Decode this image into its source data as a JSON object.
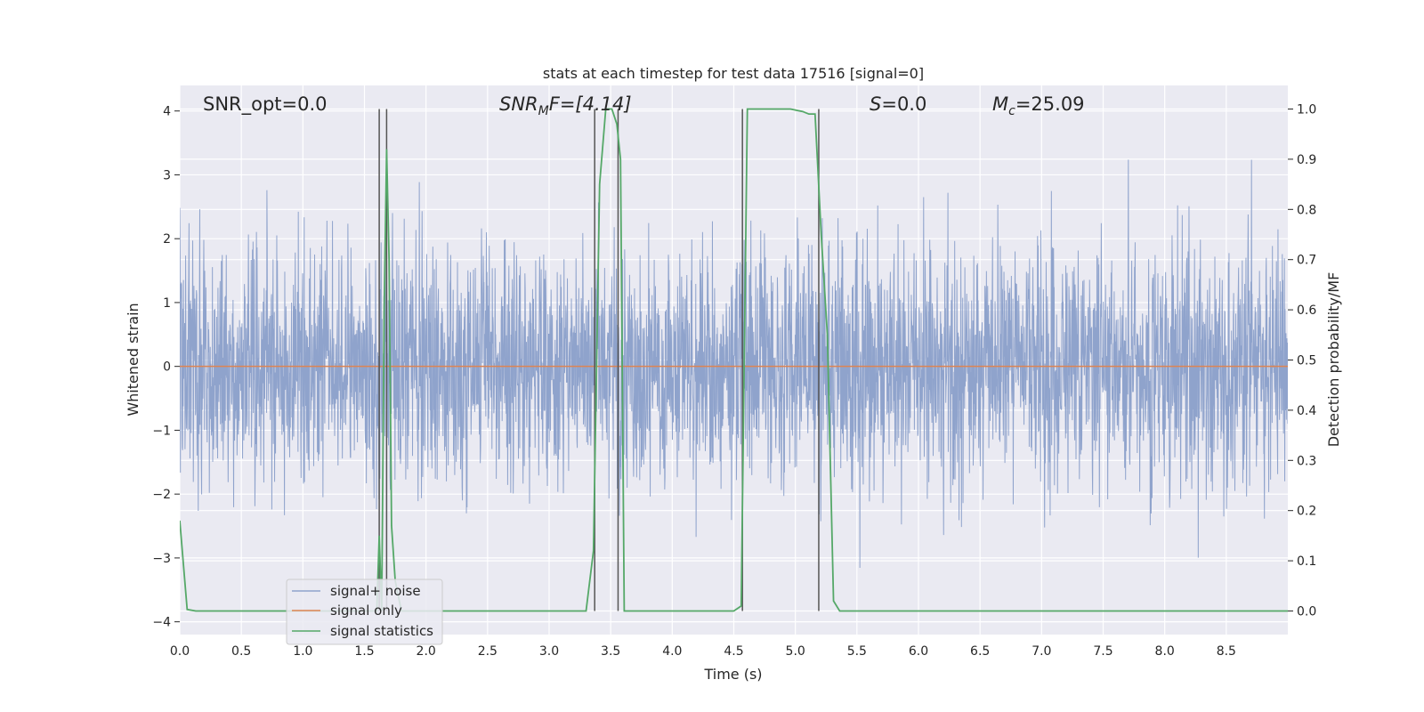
{
  "chart_data": {
    "type": "line",
    "title": "stats at each timestep for test data 17516 [signal=0]",
    "xlabel": "Time (s)",
    "ylabel_left": "Whitened strain",
    "ylabel_right": "Detection probability/MF",
    "xlim": [
      0.0,
      9.0
    ],
    "ylim_left": [
      -4.2,
      4.4
    ],
    "ylim_right": [
      -0.047,
      1.047
    ],
    "x_ticks": [
      "0.0",
      "0.5",
      "1.0",
      "1.5",
      "2.0",
      "2.5",
      "3.0",
      "3.5",
      "4.0",
      "4.5",
      "5.0",
      "5.5",
      "6.0",
      "6.5",
      "7.0",
      "7.5",
      "8.0",
      "8.5"
    ],
    "y_left_ticks": [
      "4",
      "3",
      "2",
      "1",
      "0",
      "−1",
      "−2",
      "−3",
      "−4"
    ],
    "y_right_ticks": [
      "1.0",
      "0.9",
      "0.8",
      "0.7",
      "0.6",
      "0.5",
      "0.4",
      "0.3",
      "0.2",
      "0.1",
      "0.0"
    ],
    "grid": true,
    "legend_position": "lower-left",
    "annotations": {
      "snr_opt": "SNR_opt=0.0",
      "snr_mf_main": "SNR",
      "snr_mf_sub": "M",
      "snr_mf_rest": "F=[4.14]",
      "s_main": "S",
      "s_rest": "=0.0",
      "mc_main": "M",
      "mc_sub": "c",
      "mc_rest": "=25.09"
    },
    "series": [
      {
        "name": "signal+ noise",
        "color": "#8fa3cc",
        "axis": "left",
        "description_values": "white noise, mostly within -2.5 to 2.5, peaks near 3.4 and -3.8"
      },
      {
        "name": "signal only",
        "color": "#dd8452",
        "axis": "left",
        "x": [
          0.0,
          9.0
        ],
        "y": [
          0.0,
          0.0
        ]
      },
      {
        "name": "signal statistics",
        "color": "#55a868",
        "axis": "right",
        "x": [
          0.0,
          0.06,
          0.13,
          0.2,
          1.55,
          1.6,
          1.62,
          1.64,
          1.66,
          1.68,
          1.7,
          1.72,
          1.75,
          1.8,
          1.85,
          3.3,
          3.36,
          3.41,
          3.46,
          3.51,
          3.55,
          3.58,
          3.61,
          3.66,
          4.5,
          4.56,
          4.61,
          4.66,
          4.96,
          5.06,
          5.11,
          5.16,
          5.21,
          5.26,
          5.31,
          5.36,
          9.0
        ],
        "y": [
          0.18,
          0.003,
          0.0,
          0.0,
          0.0,
          0.0,
          0.15,
          0.0,
          0.6,
          0.92,
          0.7,
          0.17,
          0.06,
          0.0,
          0.0,
          0.0,
          0.12,
          0.85,
          1.0,
          1.0,
          0.97,
          0.9,
          0.0,
          0.0,
          0.0,
          0.01,
          1.0,
          1.0,
          1.0,
          0.995,
          0.99,
          0.99,
          0.75,
          0.55,
          0.02,
          0.0,
          0.0
        ]
      }
    ],
    "vertical_markers_x": [
      1.62,
      1.68,
      3.37,
      3.56,
      4.57,
      5.19
    ]
  }
}
